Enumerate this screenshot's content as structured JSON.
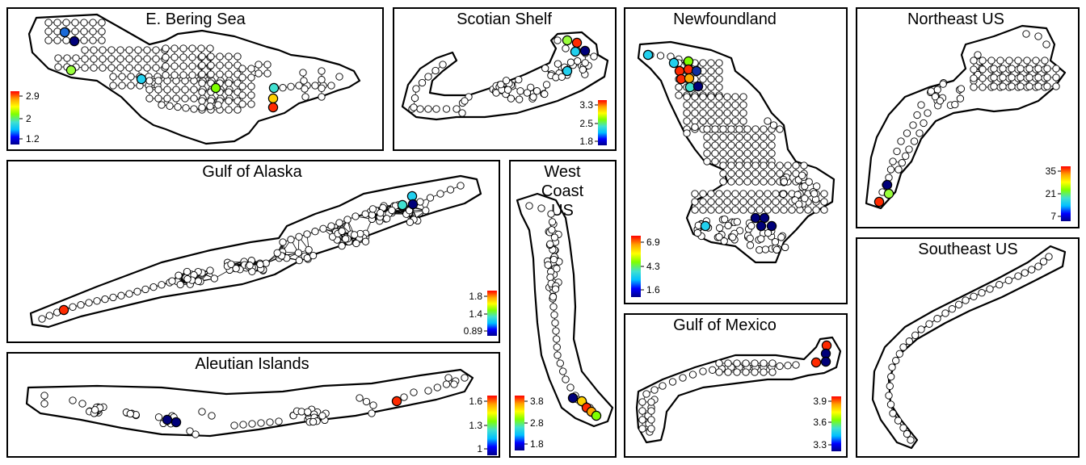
{
  "colorbar_colors": [
    "#00008b",
    "#0000ff",
    "#00bfff",
    "#40e0d0",
    "#7fff00",
    "#ffff00",
    "#ffa500",
    "#ff0000"
  ],
  "panels": [
    {
      "key": "bering",
      "title": "E. Bering Sea",
      "ticks": [
        "2.9",
        "2",
        "1.2"
      ]
    },
    {
      "key": "scotian",
      "title": "Scotian Shelf",
      "ticks": [
        "3.3",
        "2.5",
        "1.8"
      ]
    },
    {
      "key": "newfoundland",
      "title": "Newfoundland",
      "ticks": [
        "6.9",
        "4.3",
        "1.6"
      ]
    },
    {
      "key": "northeast",
      "title": "Northeast US",
      "ticks": [
        "35",
        "21",
        "7"
      ]
    },
    {
      "key": "alaska",
      "title": "Gulf of Alaska",
      "ticks": [
        "1.8",
        "1.4",
        "0.89"
      ]
    },
    {
      "key": "westcoast",
      "title_lines": [
        "West",
        "Coast",
        "US"
      ],
      "ticks": [
        "3.8",
        "2.8",
        "1.8"
      ]
    },
    {
      "key": "aleutian",
      "title": "Aleutian Islands",
      "ticks": [
        "1.6",
        "1.3",
        "1"
      ]
    },
    {
      "key": "mexico",
      "title": "Gulf of Mexico",
      "ticks": [
        "3.9",
        "3.6",
        "3.3"
      ]
    },
    {
      "key": "southeast",
      "title": "Southeast US",
      "ticks": []
    }
  ]
}
